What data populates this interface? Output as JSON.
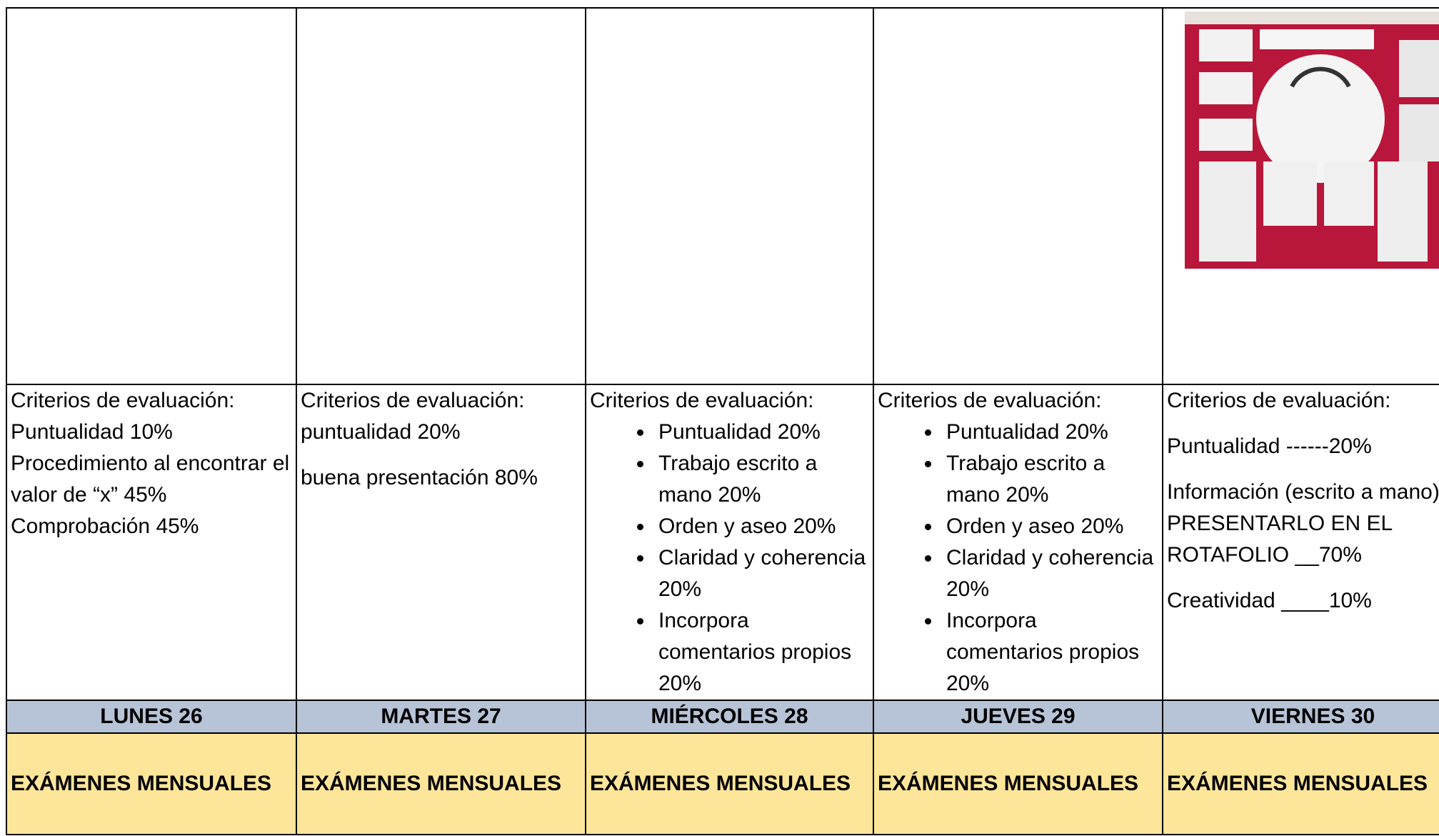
{
  "table": {
    "criteria": [
      {
        "title": "Criterios de evaluación:",
        "lines": [
          "Puntualidad 10%",
          "Procedimiento al encontrar el valor de “x” 45%",
          "Comprobación 45%"
        ]
      },
      {
        "title": "Criterios de evaluación:",
        "paragraphs": [
          "puntualidad 20%",
          "buena presentación 80%"
        ]
      },
      {
        "title": "Criterios de evaluación:",
        "bullets": [
          "Puntualidad   20%",
          "Trabajo escrito a mano  20%",
          "Orden y aseo 20%",
          "Claridad y coherencia 20%",
          "Incorpora comentarios propios 20%"
        ]
      },
      {
        "title": "Criterios de evaluación:",
        "bullets": [
          "Puntualidad   20%",
          "Trabajo escrito a mano  20%",
          "Orden y aseo 20%",
          "Claridad y coherencia 20%",
          "Incorpora comentarios propios 20%"
        ]
      },
      {
        "title": "Criterios de evaluación:",
        "paragraphs": [
          "Puntualidad  ------20%",
          "Información (escrito a mano) PRESENTARLO EN EL ROTAFOLIO __70%",
          "Creatividad ____10%"
        ]
      }
    ],
    "days": [
      "LUNES 26",
      "MARTES 27",
      "MIÉRCOLES 28",
      "JUEVES 29",
      "VIERNES 30"
    ],
    "exams": [
      "EXÁMENES MENSUALES",
      "EXÁMENES MENSUALES",
      "EXÁMENES MENSUALES",
      "EXÁMENES MENSUALES",
      "EXÁMENES MENSUALES"
    ]
  }
}
